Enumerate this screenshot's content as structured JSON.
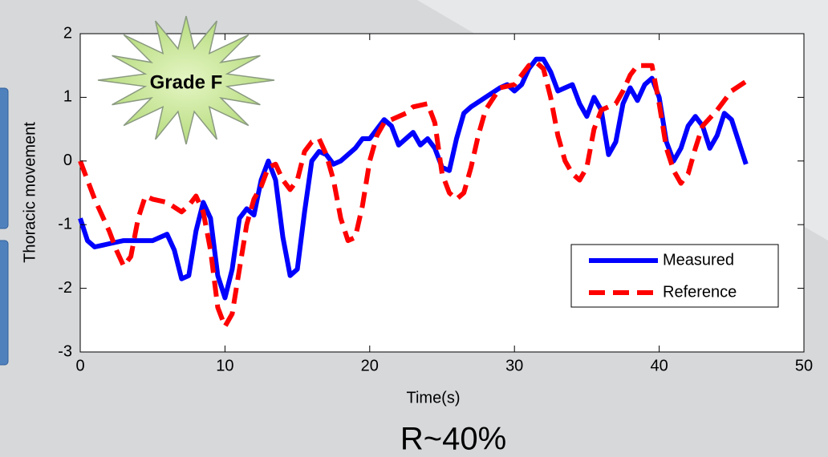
{
  "chart_data": {
    "type": "line",
    "annotation": "Grade F",
    "x_label": "Time(s)",
    "y_label": "Thoracic movement",
    "caption": "R~40%",
    "xlim": [
      0,
      50
    ],
    "xticks": [
      0,
      10,
      20,
      30,
      40,
      50
    ],
    "ylim": [
      -3,
      2
    ],
    "yticks": [
      -3,
      -2,
      -1,
      0,
      1,
      2
    ],
    "legend": "lower right",
    "series": [
      {
        "name": "Measured",
        "color": "#0000ff",
        "style": "solid",
        "x": [
          0,
          0.5,
          1,
          2,
          3,
          4,
          5,
          6,
          6.5,
          7,
          7.5,
          8,
          8.5,
          9,
          9.5,
          10,
          10.5,
          11,
          11.5,
          12,
          12.5,
          13,
          13.5,
          14,
          14.5,
          15,
          15.5,
          16,
          16.5,
          17,
          17.5,
          18,
          19,
          19.5,
          20,
          21,
          21.5,
          22,
          22.5,
          23,
          23.5,
          24,
          24.5,
          25,
          25.5,
          26,
          26.5,
          27,
          28,
          29,
          29.5,
          30,
          30.5,
          31,
          31.5,
          32,
          32.5,
          33,
          33.5,
          34,
          34.5,
          35,
          35.5,
          36,
          36.5,
          37,
          37.5,
          38,
          38.5,
          39,
          39.5,
          40,
          40.5,
          41,
          41.5,
          42,
          42.5,
          43,
          43.5,
          44,
          44.5,
          45,
          45.5,
          46
        ],
        "values": [
          -0.9,
          -1.25,
          -1.35,
          -1.3,
          -1.25,
          -1.25,
          -1.25,
          -1.15,
          -1.4,
          -1.85,
          -1.8,
          -1.1,
          -0.65,
          -0.9,
          -1.8,
          -2.15,
          -1.7,
          -0.9,
          -0.75,
          -0.85,
          -0.3,
          0,
          -0.3,
          -1.2,
          -1.8,
          -1.7,
          -0.8,
          0,
          0.15,
          0.1,
          -0.05,
          0,
          0.2,
          0.35,
          0.35,
          0.65,
          0.55,
          0.25,
          0.35,
          0.45,
          0.25,
          0.35,
          0.2,
          -0.1,
          -0.15,
          0.35,
          0.75,
          0.85,
          1.0,
          1.15,
          1.2,
          1.1,
          1.2,
          1.45,
          1.6,
          1.6,
          1.4,
          1.1,
          1.15,
          1.2,
          0.9,
          0.7,
          1.0,
          0.8,
          0.1,
          0.3,
          0.9,
          1.15,
          0.95,
          1.2,
          1.3,
          1.0,
          0.3,
          0,
          0.2,
          0.55,
          0.7,
          0.55,
          0.2,
          0.4,
          0.75,
          0.65,
          0.3,
          -0.05
        ]
      },
      {
        "name": "Reference",
        "color": "#ff0000",
        "style": "dashed",
        "x": [
          0,
          0.5,
          1,
          2,
          2.5,
          3,
          3.5,
          4,
          4.5,
          5,
          6,
          7,
          7.5,
          8,
          8.5,
          9,
          9.5,
          10,
          10.5,
          11,
          11.5,
          12,
          12.5,
          13,
          13.5,
          14,
          14.5,
          15,
          15.5,
          16,
          16.5,
          17,
          17.5,
          18,
          18.5,
          19,
          19.5,
          20,
          20.5,
          21,
          22,
          22.5,
          23,
          24,
          24.5,
          25,
          25.5,
          26,
          26.5,
          27,
          27.5,
          28,
          29,
          30,
          30.5,
          31,
          31.5,
          32,
          32.5,
          33,
          33.5,
          34,
          34.5,
          35,
          35.5,
          36,
          37,
          37.5,
          38,
          38.5,
          39,
          39.5,
          40,
          40.5,
          41,
          41.5,
          42,
          42.5,
          43,
          44,
          45,
          46
        ],
        "values": [
          0,
          -0.3,
          -0.6,
          -1.1,
          -1.4,
          -1.65,
          -1.5,
          -0.9,
          -0.55,
          -0.6,
          -0.65,
          -0.8,
          -0.7,
          -0.55,
          -0.8,
          -1.4,
          -2.3,
          -2.6,
          -2.4,
          -1.7,
          -1.0,
          -0.6,
          -0.4,
          -0.1,
          -0.05,
          -0.3,
          -0.45,
          -0.3,
          0.15,
          0.3,
          0.35,
          0.1,
          -0.3,
          -0.9,
          -1.25,
          -1.2,
          -0.7,
          0,
          0.4,
          0.6,
          0.7,
          0.75,
          0.85,
          0.9,
          0.6,
          -0.2,
          -0.5,
          -0.6,
          -0.5,
          -0.1,
          0.4,
          0.8,
          1.15,
          1.2,
          1.35,
          1.5,
          1.55,
          1.45,
          1.0,
          0.4,
          0,
          -0.2,
          -0.3,
          -0.1,
          0.5,
          0.8,
          0.9,
          1.1,
          1.35,
          1.5,
          1.5,
          1.5,
          0.9,
          0.2,
          -0.15,
          -0.35,
          -0.2,
          0.2,
          0.55,
          0.8,
          1.1,
          1.25
        ]
      }
    ]
  }
}
